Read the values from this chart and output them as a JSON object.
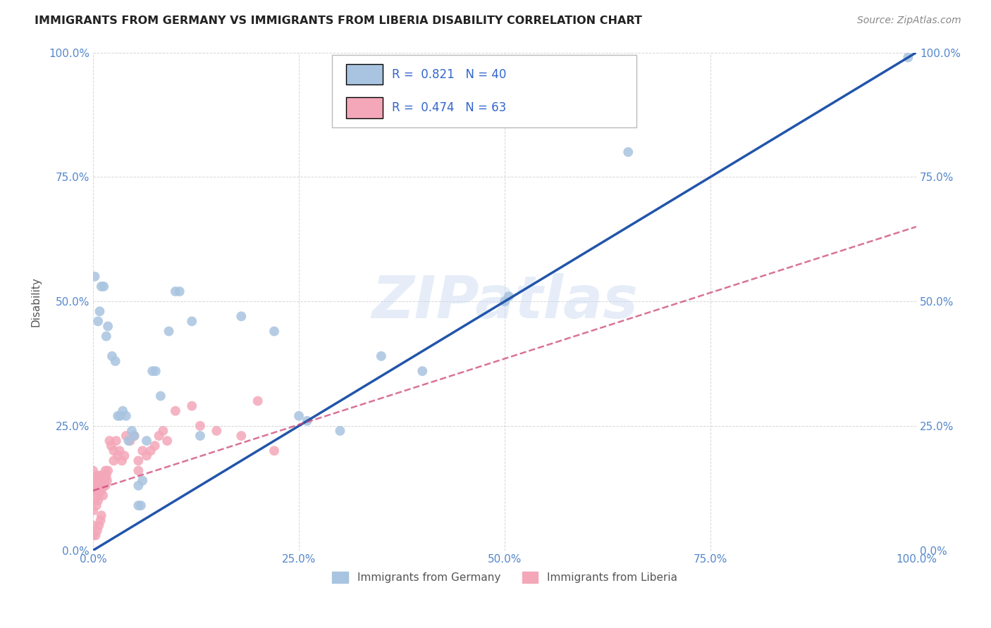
{
  "title": "IMMIGRANTS FROM GERMANY VS IMMIGRANTS FROM LIBERIA DISABILITY CORRELATION CHART",
  "source": "Source: ZipAtlas.com",
  "ylabel": "Disability",
  "xlim": [
    0,
    1
  ],
  "ylim": [
    0,
    1
  ],
  "xticks": [
    0.0,
    0.25,
    0.5,
    0.75,
    1.0
  ],
  "yticks": [
    0.0,
    0.25,
    0.5,
    0.75,
    1.0
  ],
  "xticklabels": [
    "0.0%",
    "25.0%",
    "50.0%",
    "75.0%",
    "100.0%"
  ],
  "yticklabels": [
    "0.0%",
    "25.0%",
    "50.0%",
    "75.0%",
    "100.0%"
  ],
  "right_yticklabels": [
    "0.0%",
    "25.0%",
    "50.0%",
    "75.0%",
    "100.0%"
  ],
  "germany_color": "#a8c4e0",
  "liberia_color": "#f4a7b9",
  "germany_line_color": "#2255aa",
  "liberia_line_color": "#cc4477",
  "watermark": "ZIPatlas",
  "germany_line": [
    [
      0.0,
      0.0
    ],
    [
      1.0,
      1.0
    ]
  ],
  "liberia_line": [
    [
      0.0,
      0.12
    ],
    [
      1.0,
      0.65
    ]
  ],
  "germany_points": [
    [
      0.002,
      0.55
    ],
    [
      0.006,
      0.46
    ],
    [
      0.008,
      0.48
    ],
    [
      0.01,
      0.53
    ],
    [
      0.013,
      0.53
    ],
    [
      0.016,
      0.43
    ],
    [
      0.018,
      0.45
    ],
    [
      0.023,
      0.39
    ],
    [
      0.027,
      0.38
    ],
    [
      0.03,
      0.27
    ],
    [
      0.033,
      0.27
    ],
    [
      0.036,
      0.28
    ],
    [
      0.04,
      0.27
    ],
    [
      0.043,
      0.22
    ],
    [
      0.047,
      0.24
    ],
    [
      0.05,
      0.23
    ],
    [
      0.055,
      0.09
    ],
    [
      0.058,
      0.09
    ],
    [
      0.065,
      0.22
    ],
    [
      0.072,
      0.36
    ],
    [
      0.076,
      0.36
    ],
    [
      0.082,
      0.31
    ],
    [
      0.092,
      0.44
    ],
    [
      0.1,
      0.52
    ],
    [
      0.105,
      0.52
    ],
    [
      0.12,
      0.46
    ],
    [
      0.13,
      0.23
    ],
    [
      0.18,
      0.47
    ],
    [
      0.22,
      0.44
    ],
    [
      0.25,
      0.27
    ],
    [
      0.26,
      0.26
    ],
    [
      0.3,
      0.24
    ],
    [
      0.35,
      0.39
    ],
    [
      0.4,
      0.36
    ],
    [
      0.5,
      0.5
    ],
    [
      0.505,
      0.51
    ],
    [
      0.65,
      0.8
    ],
    [
      0.99,
      0.99
    ],
    [
      0.055,
      0.13
    ],
    [
      0.06,
      0.14
    ]
  ],
  "liberia_points": [
    [
      0.0,
      0.16
    ],
    [
      0.0,
      0.12
    ],
    [
      0.0,
      0.08
    ],
    [
      0.0,
      0.05
    ],
    [
      0.0,
      0.03
    ],
    [
      0.0,
      0.14
    ],
    [
      0.002,
      0.14
    ],
    [
      0.002,
      0.1
    ],
    [
      0.003,
      0.12
    ],
    [
      0.004,
      0.12
    ],
    [
      0.004,
      0.09
    ],
    [
      0.005,
      0.15
    ],
    [
      0.005,
      0.12
    ],
    [
      0.006,
      0.13
    ],
    [
      0.006,
      0.1
    ],
    [
      0.007,
      0.14
    ],
    [
      0.007,
      0.11
    ],
    [
      0.008,
      0.15
    ],
    [
      0.008,
      0.12
    ],
    [
      0.009,
      0.13
    ],
    [
      0.01,
      0.15
    ],
    [
      0.01,
      0.12
    ],
    [
      0.012,
      0.14
    ],
    [
      0.012,
      0.11
    ],
    [
      0.013,
      0.13
    ],
    [
      0.014,
      0.14
    ],
    [
      0.015,
      0.16
    ],
    [
      0.015,
      0.13
    ],
    [
      0.016,
      0.15
    ],
    [
      0.017,
      0.14
    ],
    [
      0.018,
      0.16
    ],
    [
      0.02,
      0.22
    ],
    [
      0.022,
      0.21
    ],
    [
      0.025,
      0.2
    ],
    [
      0.025,
      0.18
    ],
    [
      0.028,
      0.22
    ],
    [
      0.03,
      0.19
    ],
    [
      0.032,
      0.2
    ],
    [
      0.035,
      0.18
    ],
    [
      0.038,
      0.19
    ],
    [
      0.04,
      0.23
    ],
    [
      0.045,
      0.22
    ],
    [
      0.05,
      0.23
    ],
    [
      0.055,
      0.18
    ],
    [
      0.055,
      0.16
    ],
    [
      0.06,
      0.2
    ],
    [
      0.065,
      0.19
    ],
    [
      0.07,
      0.2
    ],
    [
      0.075,
      0.21
    ],
    [
      0.08,
      0.23
    ],
    [
      0.085,
      0.24
    ],
    [
      0.09,
      0.22
    ],
    [
      0.1,
      0.28
    ],
    [
      0.12,
      0.29
    ],
    [
      0.13,
      0.25
    ],
    [
      0.15,
      0.24
    ],
    [
      0.18,
      0.23
    ],
    [
      0.2,
      0.3
    ],
    [
      0.22,
      0.2
    ],
    [
      0.003,
      0.03
    ],
    [
      0.005,
      0.04
    ],
    [
      0.007,
      0.05
    ],
    [
      0.009,
      0.06
    ],
    [
      0.01,
      0.07
    ]
  ]
}
